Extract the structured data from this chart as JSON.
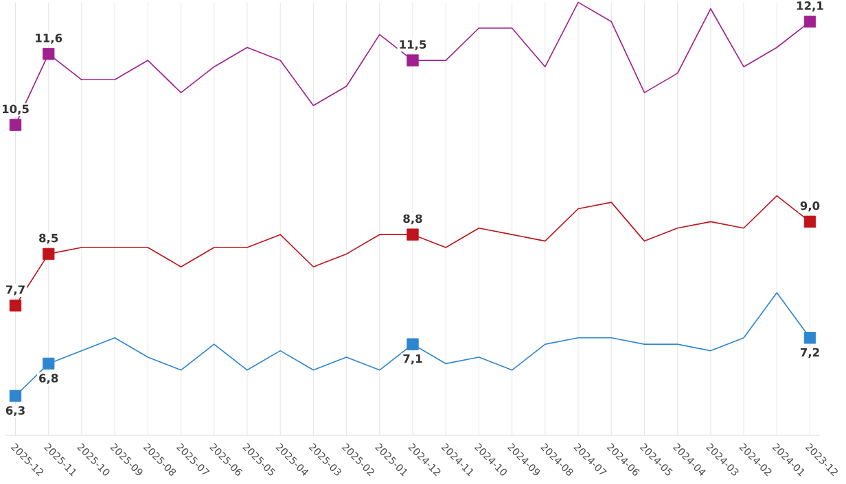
{
  "chart_data": {
    "type": "line",
    "categories": [
      "2025-12",
      "2025-11",
      "2025-10",
      "2025-09",
      "2025-08",
      "2025-07",
      "2025-06",
      "2025-05",
      "2025-04",
      "2025-03",
      "2025-02",
      "2025-01",
      "2024-12",
      "2024-11",
      "2024-10",
      "2024-09",
      "2024-08",
      "2024-07",
      "2024-06",
      "2024-05",
      "2024-04",
      "2024-03",
      "2024-02",
      "2024-01",
      "2023-12"
    ],
    "series": [
      {
        "color": "#a0208f",
        "values": [
          10.5,
          11.6,
          11.2,
          11.2,
          11.5,
          11.0,
          11.4,
          11.7,
          11.5,
          10.8,
          11.1,
          11.9,
          11.5,
          11.5,
          12.0,
          12.0,
          11.4,
          12.4,
          12.1,
          11.0,
          11.3,
          12.3,
          11.4,
          11.7,
          12.1
        ],
        "value_labels": [
          "10,5",
          "11,6",
          null,
          null,
          null,
          null,
          null,
          null,
          null,
          null,
          null,
          null,
          "11,5",
          null,
          null,
          null,
          null,
          null,
          null,
          null,
          null,
          null,
          null,
          null,
          "12,1"
        ]
      },
      {
        "color": "#c0141c",
        "values": [
          7.7,
          8.5,
          8.6,
          8.6,
          8.6,
          8.3,
          8.6,
          8.6,
          8.8,
          8.3,
          8.5,
          8.8,
          8.8,
          8.6,
          8.9,
          8.8,
          8.7,
          9.2,
          9.3,
          8.7,
          8.9,
          9.0,
          8.9,
          9.4,
          9.0
        ],
        "value_labels": [
          "7,7",
          "8,5",
          null,
          null,
          null,
          null,
          null,
          null,
          null,
          null,
          null,
          null,
          "8,8",
          null,
          null,
          null,
          null,
          null,
          null,
          null,
          null,
          null,
          null,
          null,
          "9,0"
        ]
      },
      {
        "color": "#2f86d0",
        "values": [
          6.3,
          6.8,
          7.0,
          7.2,
          6.9,
          6.7,
          7.1,
          6.7,
          7.0,
          6.7,
          6.9,
          6.7,
          7.1,
          6.8,
          6.9,
          6.7,
          7.1,
          7.2,
          7.2,
          7.1,
          7.1,
          7.0,
          7.2,
          7.9,
          7.2
        ],
        "value_labels": [
          "6,3",
          "6,8",
          null,
          null,
          null,
          null,
          null,
          null,
          null,
          null,
          null,
          null,
          "7,1",
          null,
          null,
          null,
          null,
          null,
          null,
          null,
          null,
          null,
          null,
          null,
          "7,2"
        ]
      }
    ],
    "tick_labels": "x",
    "grid": "x"
  }
}
